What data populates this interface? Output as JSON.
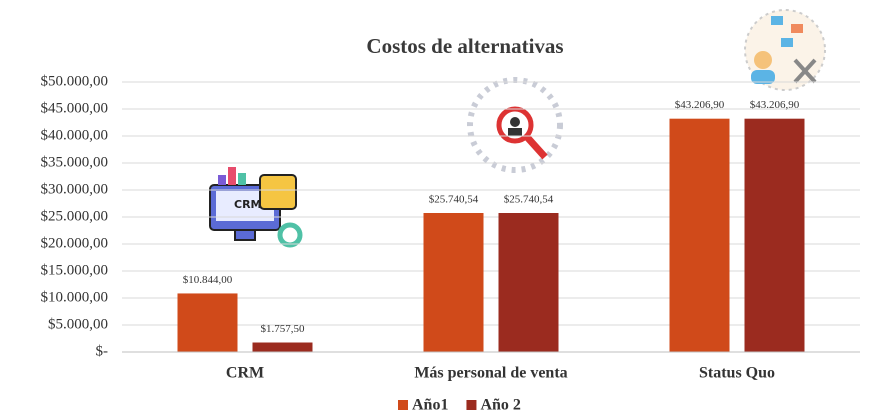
{
  "chart_data": {
    "type": "bar",
    "title": "Costos de alternativas",
    "categories": [
      "CRM",
      "Más personal de venta",
      "Status Quo"
    ],
    "series": [
      {
        "name": "Año1",
        "color": "#d04a1a",
        "values": [
          10844,
          25740.54,
          43206.9
        ],
        "value_labels": [
          "$10.844,00",
          "$25.740,54",
          "$43.206,90"
        ]
      },
      {
        "name": "Año 2",
        "color": "#9b2b1f",
        "values": [
          1757.5,
          25740.54,
          43206.9
        ],
        "value_labels": [
          "$1.757,50",
          "$25.740,54",
          "$43.206,90"
        ]
      }
    ],
    "ylim": [
      0,
      50000
    ],
    "yticks": [
      {
        "value": 0,
        "label": "$-"
      },
      {
        "value": 5000,
        "label": "$5.000,00"
      },
      {
        "value": 10000,
        "label": "$10.000,00"
      },
      {
        "value": 15000,
        "label": "$15.000,00"
      },
      {
        "value": 20000,
        "label": "$20.000,00"
      },
      {
        "value": 25000,
        "label": "$25.000,00"
      },
      {
        "value": 30000,
        "label": "$30.000,00"
      },
      {
        "value": 35000,
        "label": "$35.000,00"
      },
      {
        "value": 40000,
        "label": "$40.000,00"
      },
      {
        "value": 45000,
        "label": "$45.000,00"
      },
      {
        "value": 50000,
        "label": "$50.000,00"
      }
    ],
    "grid": true,
    "legend": "bottom"
  }
}
